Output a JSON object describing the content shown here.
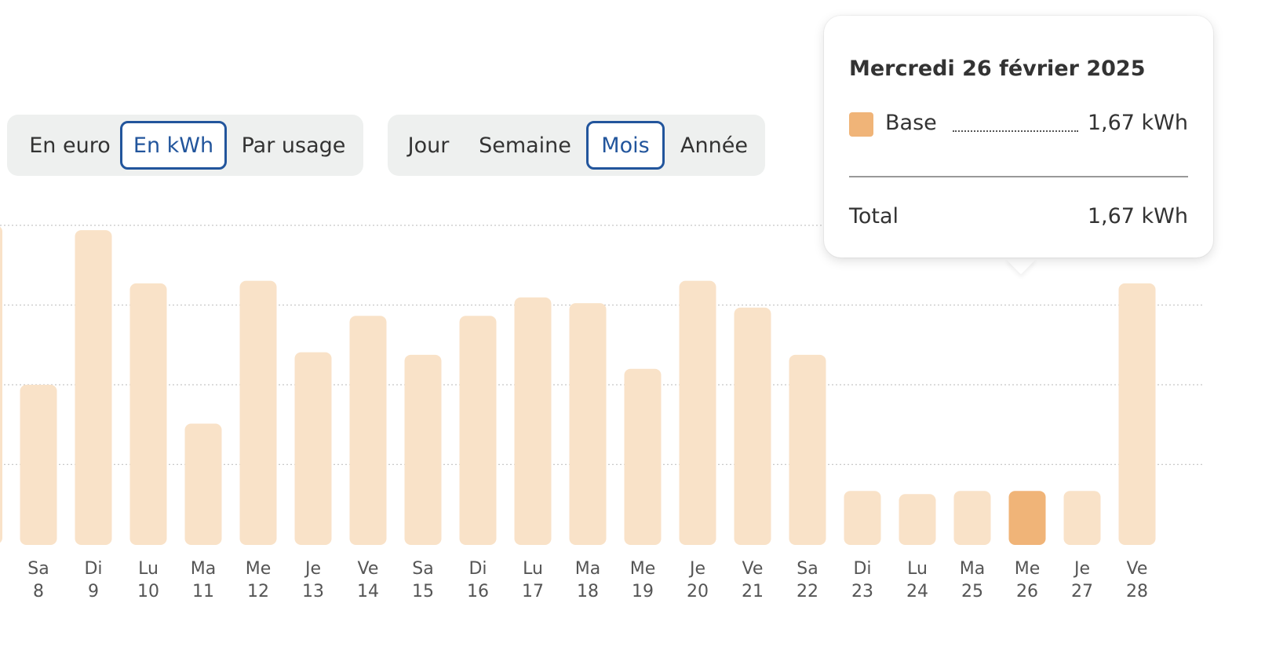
{
  "toggles": {
    "unit": [
      {
        "label": "En euro",
        "active": false
      },
      {
        "label": "En kWh",
        "active": true
      },
      {
        "label": "Par usage",
        "active": false
      }
    ],
    "period": [
      {
        "label": "Jour",
        "active": false
      },
      {
        "label": "Semaine",
        "active": false
      },
      {
        "label": "Mois",
        "active": true
      },
      {
        "label": "Année",
        "active": false
      }
    ]
  },
  "colors": {
    "bar": "#f9e2c8",
    "bar_selected": "#f0b478",
    "active_toggle": "#22559c",
    "gridline": "#c8c8c8"
  },
  "tooltip": {
    "date": "Mercredi 26 février 2025",
    "series_name": "Base",
    "series_value": "1,67 kWh",
    "total_label": "Total",
    "total_value": "1,67 kWh"
  },
  "chart_data": {
    "type": "bar",
    "title": "",
    "xlabel": "",
    "ylabel": "",
    "categories": [
      {
        "day": "Sa",
        "date": "8"
      },
      {
        "day": "Di",
        "date": "9"
      },
      {
        "day": "Lu",
        "date": "10"
      },
      {
        "day": "Ma",
        "date": "11"
      },
      {
        "day": "Me",
        "date": "12"
      },
      {
        "day": "Je",
        "date": "13"
      },
      {
        "day": "Ve",
        "date": "14"
      },
      {
        "day": "Sa",
        "date": "15"
      },
      {
        "day": "Di",
        "date": "16"
      },
      {
        "day": "Lu",
        "date": "17"
      },
      {
        "day": "Ma",
        "date": "18"
      },
      {
        "day": "Me",
        "date": "19"
      },
      {
        "day": "Je",
        "date": "20"
      },
      {
        "day": "Ve",
        "date": "21"
      },
      {
        "day": "Sa",
        "date": "22"
      },
      {
        "day": "Di",
        "date": "23"
      },
      {
        "day": "Lu",
        "date": "24"
      },
      {
        "day": "Ma",
        "date": "25"
      },
      {
        "day": "Me",
        "date": "26"
      },
      {
        "day": "Je",
        "date": "27"
      },
      {
        "day": "Ve",
        "date": "28"
      }
    ],
    "values": [
      5.0,
      9.85,
      8.18,
      3.78,
      8.26,
      6.02,
      7.16,
      5.94,
      7.16,
      7.74,
      7.56,
      5.5,
      8.26,
      7.42,
      5.94,
      1.67,
      1.57,
      1.67,
      1.67,
      1.67,
      8.18
    ],
    "selected_index": 18,
    "ylim": [
      0,
      10
    ],
    "gridlines": [
      2.5,
      5,
      7.5,
      10
    ],
    "grid": true,
    "edge_bar_value": 10
  }
}
